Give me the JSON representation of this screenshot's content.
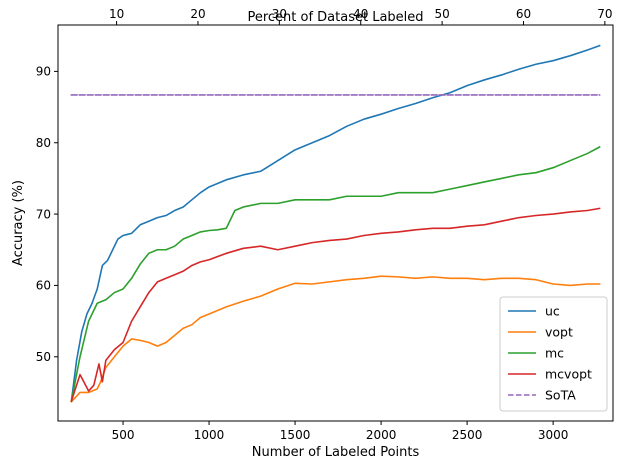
{
  "chart_data": {
    "type": "line",
    "xlabel": "Number of Labeled Points",
    "x2label": "Percent of Dataset Labeled",
    "ylabel": "Accuracy (%)",
    "xlim": [
      122,
      3348
    ],
    "x2lim": [
      2.8,
      71.0
    ],
    "ylim": [
      41.0,
      96.5
    ],
    "x_ticks": [
      500,
      1000,
      1500,
      2000,
      2500,
      3000
    ],
    "x2_ticks": [
      10,
      20,
      30,
      40,
      50,
      60,
      70
    ],
    "y_ticks": [
      50,
      60,
      70,
      80,
      90
    ],
    "legend_position": "lower-right",
    "grid": false,
    "series": [
      {
        "name": "uc",
        "color": "#1f77b4",
        "style": "solid",
        "x": [
          200,
          230,
          260,
          290,
          320,
          350,
          380,
          410,
          440,
          470,
          500,
          550,
          600,
          650,
          700,
          750,
          800,
          850,
          900,
          950,
          1000,
          1100,
          1200,
          1300,
          1400,
          1500,
          1600,
          1700,
          1800,
          1900,
          2000,
          2100,
          2200,
          2300,
          2400,
          2500,
          2600,
          2700,
          2800,
          2900,
          3000,
          3100,
          3200,
          3270
        ],
        "y": [
          43.8,
          49.5,
          53.5,
          56.0,
          57.5,
          59.5,
          62.8,
          63.5,
          65.0,
          66.5,
          67.0,
          67.3,
          68.5,
          69.0,
          69.5,
          69.8,
          70.5,
          71.0,
          72.0,
          73.0,
          73.8,
          74.8,
          75.5,
          76.0,
          77.5,
          79.0,
          80.0,
          81.0,
          82.3,
          83.3,
          84.0,
          84.8,
          85.5,
          86.3,
          87.0,
          88.0,
          88.8,
          89.5,
          90.3,
          91.0,
          91.5,
          92.2,
          93.0,
          93.6
        ]
      },
      {
        "name": "vopt",
        "color": "#ff7f0e",
        "style": "solid",
        "x": [
          200,
          250,
          300,
          350,
          370,
          400,
          450,
          500,
          550,
          600,
          650,
          700,
          750,
          800,
          850,
          900,
          950,
          1000,
          1100,
          1200,
          1300,
          1400,
          1500,
          1600,
          1700,
          1800,
          1900,
          2000,
          2100,
          2200,
          2300,
          2400,
          2500,
          2600,
          2700,
          2800,
          2900,
          3000,
          3100,
          3200,
          3270
        ],
        "y": [
          43.7,
          45.0,
          45.0,
          45.5,
          46.5,
          48.5,
          50.0,
          51.5,
          52.5,
          52.3,
          52.0,
          51.5,
          52.0,
          53.0,
          54.0,
          54.5,
          55.5,
          56.0,
          57.0,
          57.8,
          58.5,
          59.5,
          60.3,
          60.2,
          60.5,
          60.8,
          61.0,
          61.3,
          61.2,
          61.0,
          61.2,
          61.0,
          61.0,
          60.8,
          61.0,
          61.0,
          60.8,
          60.2,
          60.0,
          60.2,
          60.2
        ]
      },
      {
        "name": "mc",
        "color": "#2ca02c",
        "style": "solid",
        "x": [
          200,
          250,
          300,
          350,
          400,
          450,
          500,
          550,
          600,
          650,
          700,
          750,
          800,
          850,
          900,
          950,
          1000,
          1050,
          1100,
          1150,
          1200,
          1300,
          1400,
          1500,
          1600,
          1700,
          1800,
          1900,
          2000,
          2100,
          2200,
          2300,
          2400,
          2500,
          2600,
          2700,
          2800,
          2900,
          3000,
          3100,
          3200,
          3270
        ],
        "y": [
          43.8,
          50.0,
          55.0,
          57.5,
          58.0,
          59.0,
          59.5,
          61.0,
          63.0,
          64.5,
          65.0,
          65.0,
          65.5,
          66.5,
          67.0,
          67.5,
          67.7,
          67.8,
          68.0,
          70.5,
          71.0,
          71.5,
          71.5,
          72.0,
          72.0,
          72.0,
          72.5,
          72.5,
          72.5,
          73.0,
          73.0,
          73.0,
          73.5,
          74.0,
          74.5,
          75.0,
          75.5,
          75.8,
          76.5,
          77.5,
          78.5,
          79.4
        ]
      },
      {
        "name": "mcvopt",
        "color": "#d62728",
        "style": "solid",
        "x": [
          200,
          250,
          300,
          330,
          360,
          380,
          400,
          450,
          500,
          550,
          600,
          650,
          700,
          750,
          800,
          850,
          900,
          950,
          1000,
          1100,
          1200,
          1300,
          1400,
          1500,
          1600,
          1700,
          1800,
          1900,
          2000,
          2100,
          2200,
          2300,
          2400,
          2500,
          2600,
          2700,
          2800,
          2900,
          3000,
          3100,
          3200,
          3270
        ],
        "y": [
          43.8,
          47.5,
          45.2,
          46.0,
          49.0,
          46.5,
          49.5,
          51.0,
          52.0,
          55.0,
          57.0,
          59.0,
          60.5,
          61.0,
          61.5,
          62.0,
          62.8,
          63.3,
          63.6,
          64.5,
          65.2,
          65.5,
          65.0,
          65.5,
          66.0,
          66.3,
          66.5,
          67.0,
          67.3,
          67.5,
          67.8,
          68.0,
          68.0,
          68.3,
          68.5,
          69.0,
          69.5,
          69.8,
          70.0,
          70.3,
          70.5,
          70.8
        ]
      },
      {
        "name": "SoTA",
        "color": "#9467bd",
        "style": "dashed",
        "x": [
          200,
          3270
        ],
        "y": [
          86.7,
          86.7
        ]
      }
    ]
  }
}
